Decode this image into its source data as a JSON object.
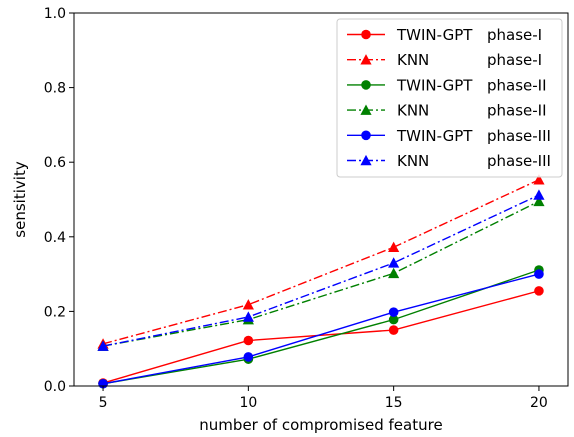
{
  "chart_data": {
    "type": "line",
    "xlabel": "number of compromised feature",
    "ylabel": "sensitivity",
    "x": [
      5,
      10,
      15,
      20
    ],
    "xlim": [
      4,
      21
    ],
    "ylim": [
      0.0,
      1.0
    ],
    "xticks": [
      "5",
      "10",
      "15",
      "20"
    ],
    "yticks": [
      "0.0",
      "0.2",
      "0.4",
      "0.6",
      "0.8",
      "1.0"
    ],
    "grid": false,
    "legend_position": "top-right",
    "series": [
      {
        "name": "TWIN-GPT phase-I",
        "legend_model": "TWIN-GPT",
        "legend_phase": "phase-I",
        "color": "#ff0000",
        "linestyle": "solid",
        "marker": "circle",
        "values": [
          0.008,
          0.122,
          0.15,
          0.255
        ]
      },
      {
        "name": "KNN phase-I",
        "legend_model": "KNN",
        "legend_phase": "phase-I",
        "color": "#ff0000",
        "linestyle": "dashdot",
        "marker": "triangle",
        "values": [
          0.113,
          0.218,
          0.372,
          0.553
        ]
      },
      {
        "name": "TWIN-GPT phase-II",
        "legend_model": "TWIN-GPT",
        "legend_phase": "phase-II",
        "color": "#008000",
        "linestyle": "solid",
        "marker": "circle",
        "values": [
          0.006,
          0.072,
          0.178,
          0.311
        ]
      },
      {
        "name": "KNN phase-II",
        "legend_model": "KNN",
        "legend_phase": "phase-II",
        "color": "#008000",
        "linestyle": "dashdot",
        "marker": "triangle",
        "values": [
          0.107,
          0.178,
          0.302,
          0.495
        ]
      },
      {
        "name": "TWIN-GPT phase-III",
        "legend_model": "TWIN-GPT",
        "legend_phase": "phase-III",
        "color": "#0000ff",
        "linestyle": "solid",
        "marker": "circle",
        "values": [
          0.006,
          0.078,
          0.198,
          0.3
        ]
      },
      {
        "name": "KNN phase-III",
        "legend_model": "KNN",
        "legend_phase": "phase-III",
        "color": "#0000ff",
        "linestyle": "dashdot",
        "marker": "triangle",
        "values": [
          0.107,
          0.185,
          0.33,
          0.512
        ]
      }
    ]
  }
}
